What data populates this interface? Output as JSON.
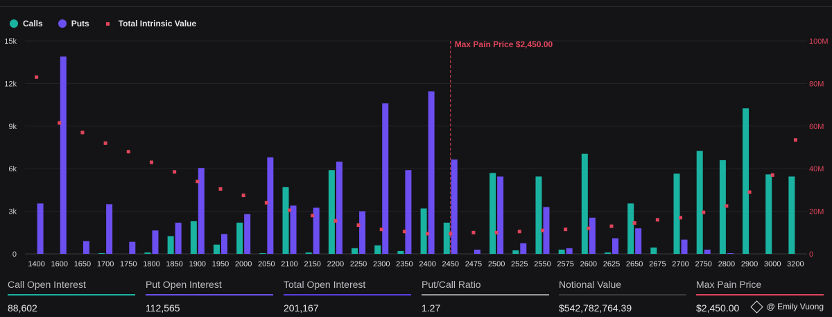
{
  "chart_data": {
    "type": "bar",
    "legend": [
      {
        "label": "Calls",
        "color": "#1ab3a2",
        "shape": "circle"
      },
      {
        "label": "Puts",
        "color": "#6c4ff0",
        "shape": "circle"
      },
      {
        "label": "Total Intrinsic Value",
        "color": "#e0455b",
        "shape": "square"
      }
    ],
    "categories": [
      "1400",
      "1600",
      "1650",
      "1700",
      "1750",
      "1800",
      "1850",
      "1900",
      "1950",
      "2000",
      "2050",
      "2100",
      "2150",
      "2200",
      "2250",
      "2300",
      "2350",
      "2400",
      "2450",
      "2475",
      "2500",
      "2525",
      "2550",
      "2575",
      "2600",
      "2625",
      "2650",
      "2675",
      "2700",
      "2750",
      "2800",
      "2900",
      "3000",
      "3200"
    ],
    "series": [
      {
        "name": "Calls",
        "axis": "left",
        "color": "#1ab3a2",
        "values": [
          0,
          0,
          0,
          50,
          0,
          100,
          1250,
          2300,
          650,
          2200,
          50,
          4700,
          100,
          5900,
          400,
          600,
          200,
          3200,
          2200,
          0,
          5700,
          250,
          5450,
          300,
          7050,
          100,
          3550,
          450,
          5650,
          7250,
          6600,
          10250,
          5600,
          5450
        ]
      },
      {
        "name": "Puts",
        "axis": "left",
        "color": "#6c4ff0",
        "values": [
          3550,
          13900,
          900,
          3500,
          850,
          1650,
          2200,
          6050,
          1400,
          2800,
          6800,
          3400,
          3250,
          6500,
          3000,
          10600,
          5900,
          11450,
          6650,
          300,
          5450,
          750,
          3300,
          400,
          2550,
          1100,
          1800,
          0,
          1000,
          300,
          50,
          0,
          0,
          0
        ]
      },
      {
        "name": "Total Intrinsic Value",
        "axis": "right",
        "color": "#e0455b",
        "type": "scatter",
        "values": [
          83,
          61.5,
          57,
          52,
          48,
          43,
          38.5,
          34,
          30.5,
          27.5,
          24,
          20.5,
          18,
          15.5,
          13.5,
          11.5,
          10.5,
          9.5,
          9.5,
          10,
          10,
          10.5,
          11,
          11.5,
          12,
          13,
          14.5,
          16,
          17,
          19.5,
          22.5,
          29,
          37,
          53.5
        ]
      }
    ],
    "y_left": {
      "min": 0,
      "max": 15000,
      "ticks": [
        0,
        3000,
        6000,
        9000,
        12000,
        15000
      ],
      "tick_labels": [
        "0",
        "3k",
        "6k",
        "9k",
        "12k",
        "15k"
      ]
    },
    "y_right": {
      "min": 0,
      "max": 100,
      "ticks": [
        0,
        20,
        40,
        60,
        80,
        100
      ],
      "tick_labels": [
        "0",
        "20M",
        "40M",
        "60M",
        "80M",
        "100M"
      ]
    },
    "annotation": {
      "category": "2450",
      "label": "Max Pain Price $2,450.00",
      "color": "#e0455b"
    },
    "grid": true,
    "legend_position": "top-left"
  },
  "stats": [
    {
      "label": "Call Open Interest",
      "value": "88,602",
      "color": "#1ab3a2"
    },
    {
      "label": "Put Open Interest",
      "value": "112,565",
      "color": "#6c4ff0"
    },
    {
      "label": "Total Open Interest",
      "value": "201,167",
      "color": "#5a3fe0"
    },
    {
      "label": "Put/Call Ratio",
      "value": "1.27",
      "color": "#9a9a9e"
    },
    {
      "label": "Notional Value",
      "value": "$542,782,764.39",
      "color": "#3a3a3e"
    },
    {
      "label": "Max Pain Price",
      "value": "$2,450.00",
      "color": "#e0455b"
    }
  ],
  "watermark": "@ Emily Vuong"
}
